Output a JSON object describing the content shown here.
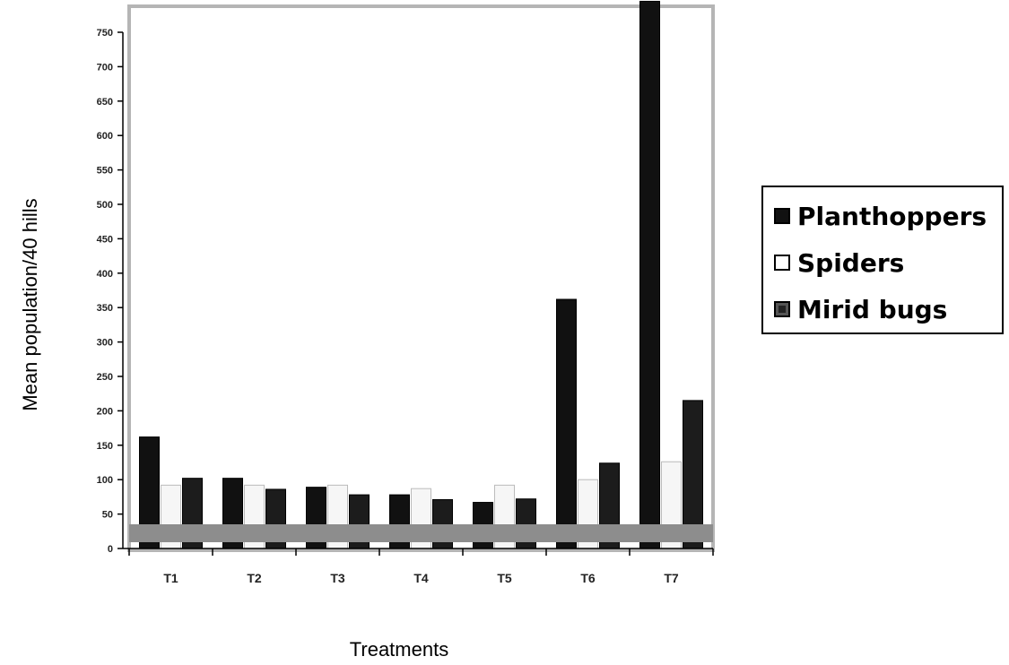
{
  "chart_data": {
    "type": "bar",
    "title": "",
    "xlabel": "Treatments",
    "ylabel": "Mean population/40 hills",
    "categories": [
      "T1",
      "T2",
      "T3",
      "T4",
      "T5",
      "T6",
      "T7"
    ],
    "series": [
      {
        "name": "Planthoppers",
        "values": [
          162,
          102,
          89,
          78,
          67,
          362,
          795
        ],
        "color": "#111111"
      },
      {
        "name": "Spiders",
        "values": [
          92,
          92,
          92,
          87,
          92,
          100,
          126
        ],
        "color": "#f6f6f6"
      },
      {
        "name": "Mirid bugs",
        "values": [
          102,
          86,
          78,
          71,
          72,
          124,
          215
        ],
        "color": "#1c1c1c"
      }
    ],
    "yticks": [
      "0",
      "50",
      "100",
      "150",
      "200",
      "250",
      "300",
      "350",
      "400",
      "450",
      "500",
      "550",
      "600",
      "650",
      "700",
      "750"
    ],
    "ylim": [
      0,
      760
    ],
    "grid": false,
    "legend_position": "right"
  }
}
